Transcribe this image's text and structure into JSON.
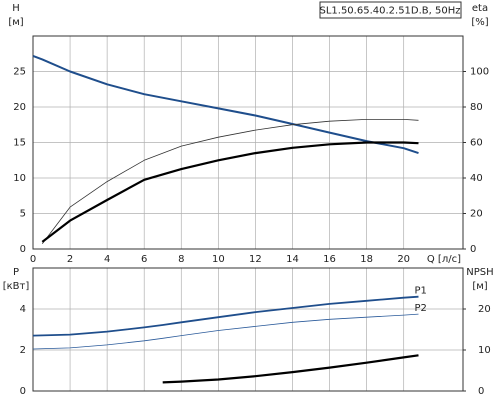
{
  "chart_data": [
    {
      "type": "line",
      "title": "SL1.50.65.40.2.51D.B, 50Hz",
      "ylabel": "H",
      "yunit": "[м]",
      "y2label": "eta",
      "y2unit": "[%]",
      "xlabel": "Q [л/с]",
      "x": [
        0,
        0.5,
        2,
        4,
        6,
        8,
        10,
        12,
        14,
        16,
        18,
        20,
        20.8
      ],
      "xlim": [
        0,
        23.2
      ],
      "xticks": [
        0,
        2,
        4,
        6,
        8,
        10,
        12,
        14,
        16,
        18,
        20
      ],
      "ylim": [
        0,
        30
      ],
      "yticks": [
        0,
        5,
        10,
        15,
        20,
        25
      ],
      "y2lim": [
        0,
        120
      ],
      "y2ticks": [
        0,
        20,
        40,
        60,
        80,
        100
      ],
      "grid": true,
      "show_xtick_labels": true,
      "series": [
        {
          "color": "#1f4e8c",
          "values": [
            27.2,
            26.7,
            25.0,
            23.2,
            21.8,
            20.8,
            19.8,
            18.8,
            17.6,
            16.4,
            15.2,
            14.2,
            13.5
          ]
        },
        {
          "color": "#333333",
          "axis": "y2",
          "values": [
            null,
            3,
            23.6,
            38,
            50,
            58,
            63,
            67,
            70,
            72,
            73,
            73,
            72.5
          ]
        },
        {
          "color": "#000000",
          "axis": "y2",
          "values": [
            null,
            4,
            16,
            27.6,
            39,
            45,
            50,
            54,
            57,
            59,
            60,
            60,
            59.6
          ]
        }
      ]
    },
    {
      "type": "line",
      "ylabel": "P",
      "yunit": "[кВт]",
      "y2label": "NPSH",
      "y2unit": "[м]",
      "x": [
        0,
        2,
        4,
        6,
        7,
        8,
        10,
        12,
        14,
        16,
        18,
        20,
        20.8
      ],
      "xlim": [
        0,
        23.2
      ],
      "xticks": [
        0,
        2,
        4,
        6,
        8,
        10,
        12,
        14,
        16,
        18,
        20
      ],
      "ylim": [
        0,
        6
      ],
      "yticks": [
        0,
        2,
        4
      ],
      "y2lim": [
        0,
        30
      ],
      "y2ticks": [
        0,
        10,
        20
      ],
      "grid": true,
      "show_xtick_labels": false,
      "series": [
        {
          "name": "P1",
          "color": "#1f4e8c",
          "values": [
            2.7,
            2.75,
            2.9,
            3.1,
            3.22,
            3.35,
            3.6,
            3.85,
            4.05,
            4.25,
            4.4,
            4.55,
            4.6
          ]
        },
        {
          "name": "P2",
          "color": "#2a5a9a",
          "values": [
            2.05,
            2.1,
            2.25,
            2.45,
            2.57,
            2.7,
            2.95,
            3.15,
            3.35,
            3.5,
            3.6,
            3.7,
            3.75
          ]
        },
        {
          "color": "#000000",
          "axis": "y2",
          "values": [
            null,
            null,
            null,
            null,
            2.1,
            2.3,
            2.8,
            3.6,
            4.6,
            5.7,
            6.9,
            8.2,
            8.7
          ]
        }
      ]
    }
  ]
}
